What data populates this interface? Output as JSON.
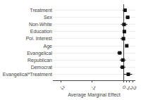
{
  "chart_data": {
    "type": "scatter",
    "categories": [
      "Treatment",
      "Sex",
      "Non-White",
      "Education",
      "Pol. Interest",
      "Age",
      "Evangelical",
      "Republican",
      "Democrat",
      "Evangelical*Treatment"
    ],
    "values": [
      0.05,
      0.135,
      0.02,
      0.03,
      0.0,
      0.105,
      -0.12,
      -0.02,
      -0.03,
      0.155
    ],
    "ci_low": [
      -0.02,
      0.07,
      -0.08,
      0.005,
      -0.095,
      0.075,
      -0.2,
      -0.115,
      -0.115,
      0.005
    ],
    "ci_high": [
      0.1,
      0.2,
      0.125,
      0.06,
      0.05,
      0.135,
      -0.045,
      0.075,
      0.065,
      0.28
    ],
    "xlabel": "Average Marginal Effect",
    "xlim": [
      -2.25,
      0.38
    ],
    "xticks": [
      -2,
      -1,
      0,
      {
        "value": 0.1,
        "label": ".1"
      },
      {
        "value": 0.2,
        "label": ".2"
      },
      {
        "value": 0.3,
        "label": ".3"
      }
    ],
    "color": "#111111",
    "marker": "square",
    "grid": true
  }
}
